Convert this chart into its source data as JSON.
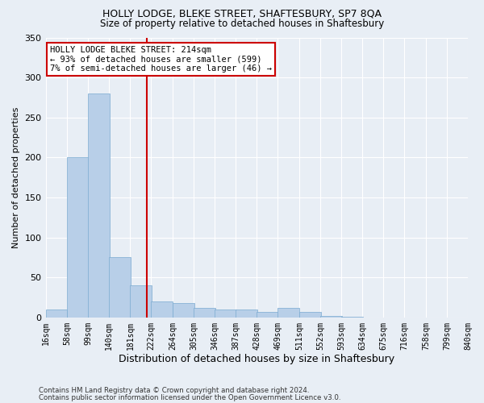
{
  "title1": "HOLLY LODGE, BLEKE STREET, SHAFTESBURY, SP7 8QA",
  "title2": "Size of property relative to detached houses in Shaftesbury",
  "xlabel": "Distribution of detached houses by size in Shaftesbury",
  "ylabel": "Number of detached properties",
  "annotation_line1": "HOLLY LODGE BLEKE STREET: 214sqm",
  "annotation_line2": "← 93% of detached houses are smaller (599)",
  "annotation_line3": "7% of semi-detached houses are larger (46) →",
  "footnote1": "Contains HM Land Registry data © Crown copyright and database right 2024.",
  "footnote2": "Contains public sector information licensed under the Open Government Licence v3.0.",
  "bar_color": "#b8cfe8",
  "bar_edge_color": "#7aaad0",
  "vline_color": "#cc0000",
  "vline_x": 214,
  "bin_edges": [
    16,
    58,
    99,
    140,
    181,
    222,
    264,
    305,
    346,
    387,
    428,
    469,
    511,
    552,
    593,
    634,
    675,
    716,
    758,
    799,
    840
  ],
  "bin_labels": [
    "16sqm",
    "58sqm",
    "99sqm",
    "140sqm",
    "181sqm",
    "222sqm",
    "264sqm",
    "305sqm",
    "346sqm",
    "387sqm",
    "428sqm",
    "469sqm",
    "511sqm",
    "552sqm",
    "593sqm",
    "634sqm",
    "675sqm",
    "716sqm",
    "758sqm",
    "799sqm",
    "840sqm"
  ],
  "bar_heights": [
    10,
    200,
    280,
    75,
    40,
    20,
    18,
    12,
    10,
    10,
    7,
    12,
    7,
    2,
    1,
    0,
    0,
    0,
    0,
    0,
    1
  ],
  "ylim": [
    0,
    350
  ],
  "yticks": [
    0,
    50,
    100,
    150,
    200,
    250,
    300,
    350
  ],
  "bg_color": "#e8eef5",
  "plot_bg_color": "#e8eef5",
  "grid_color": "#ffffff",
  "annotation_box_facecolor": "#ffffff",
  "annotation_box_edgecolor": "#cc0000"
}
